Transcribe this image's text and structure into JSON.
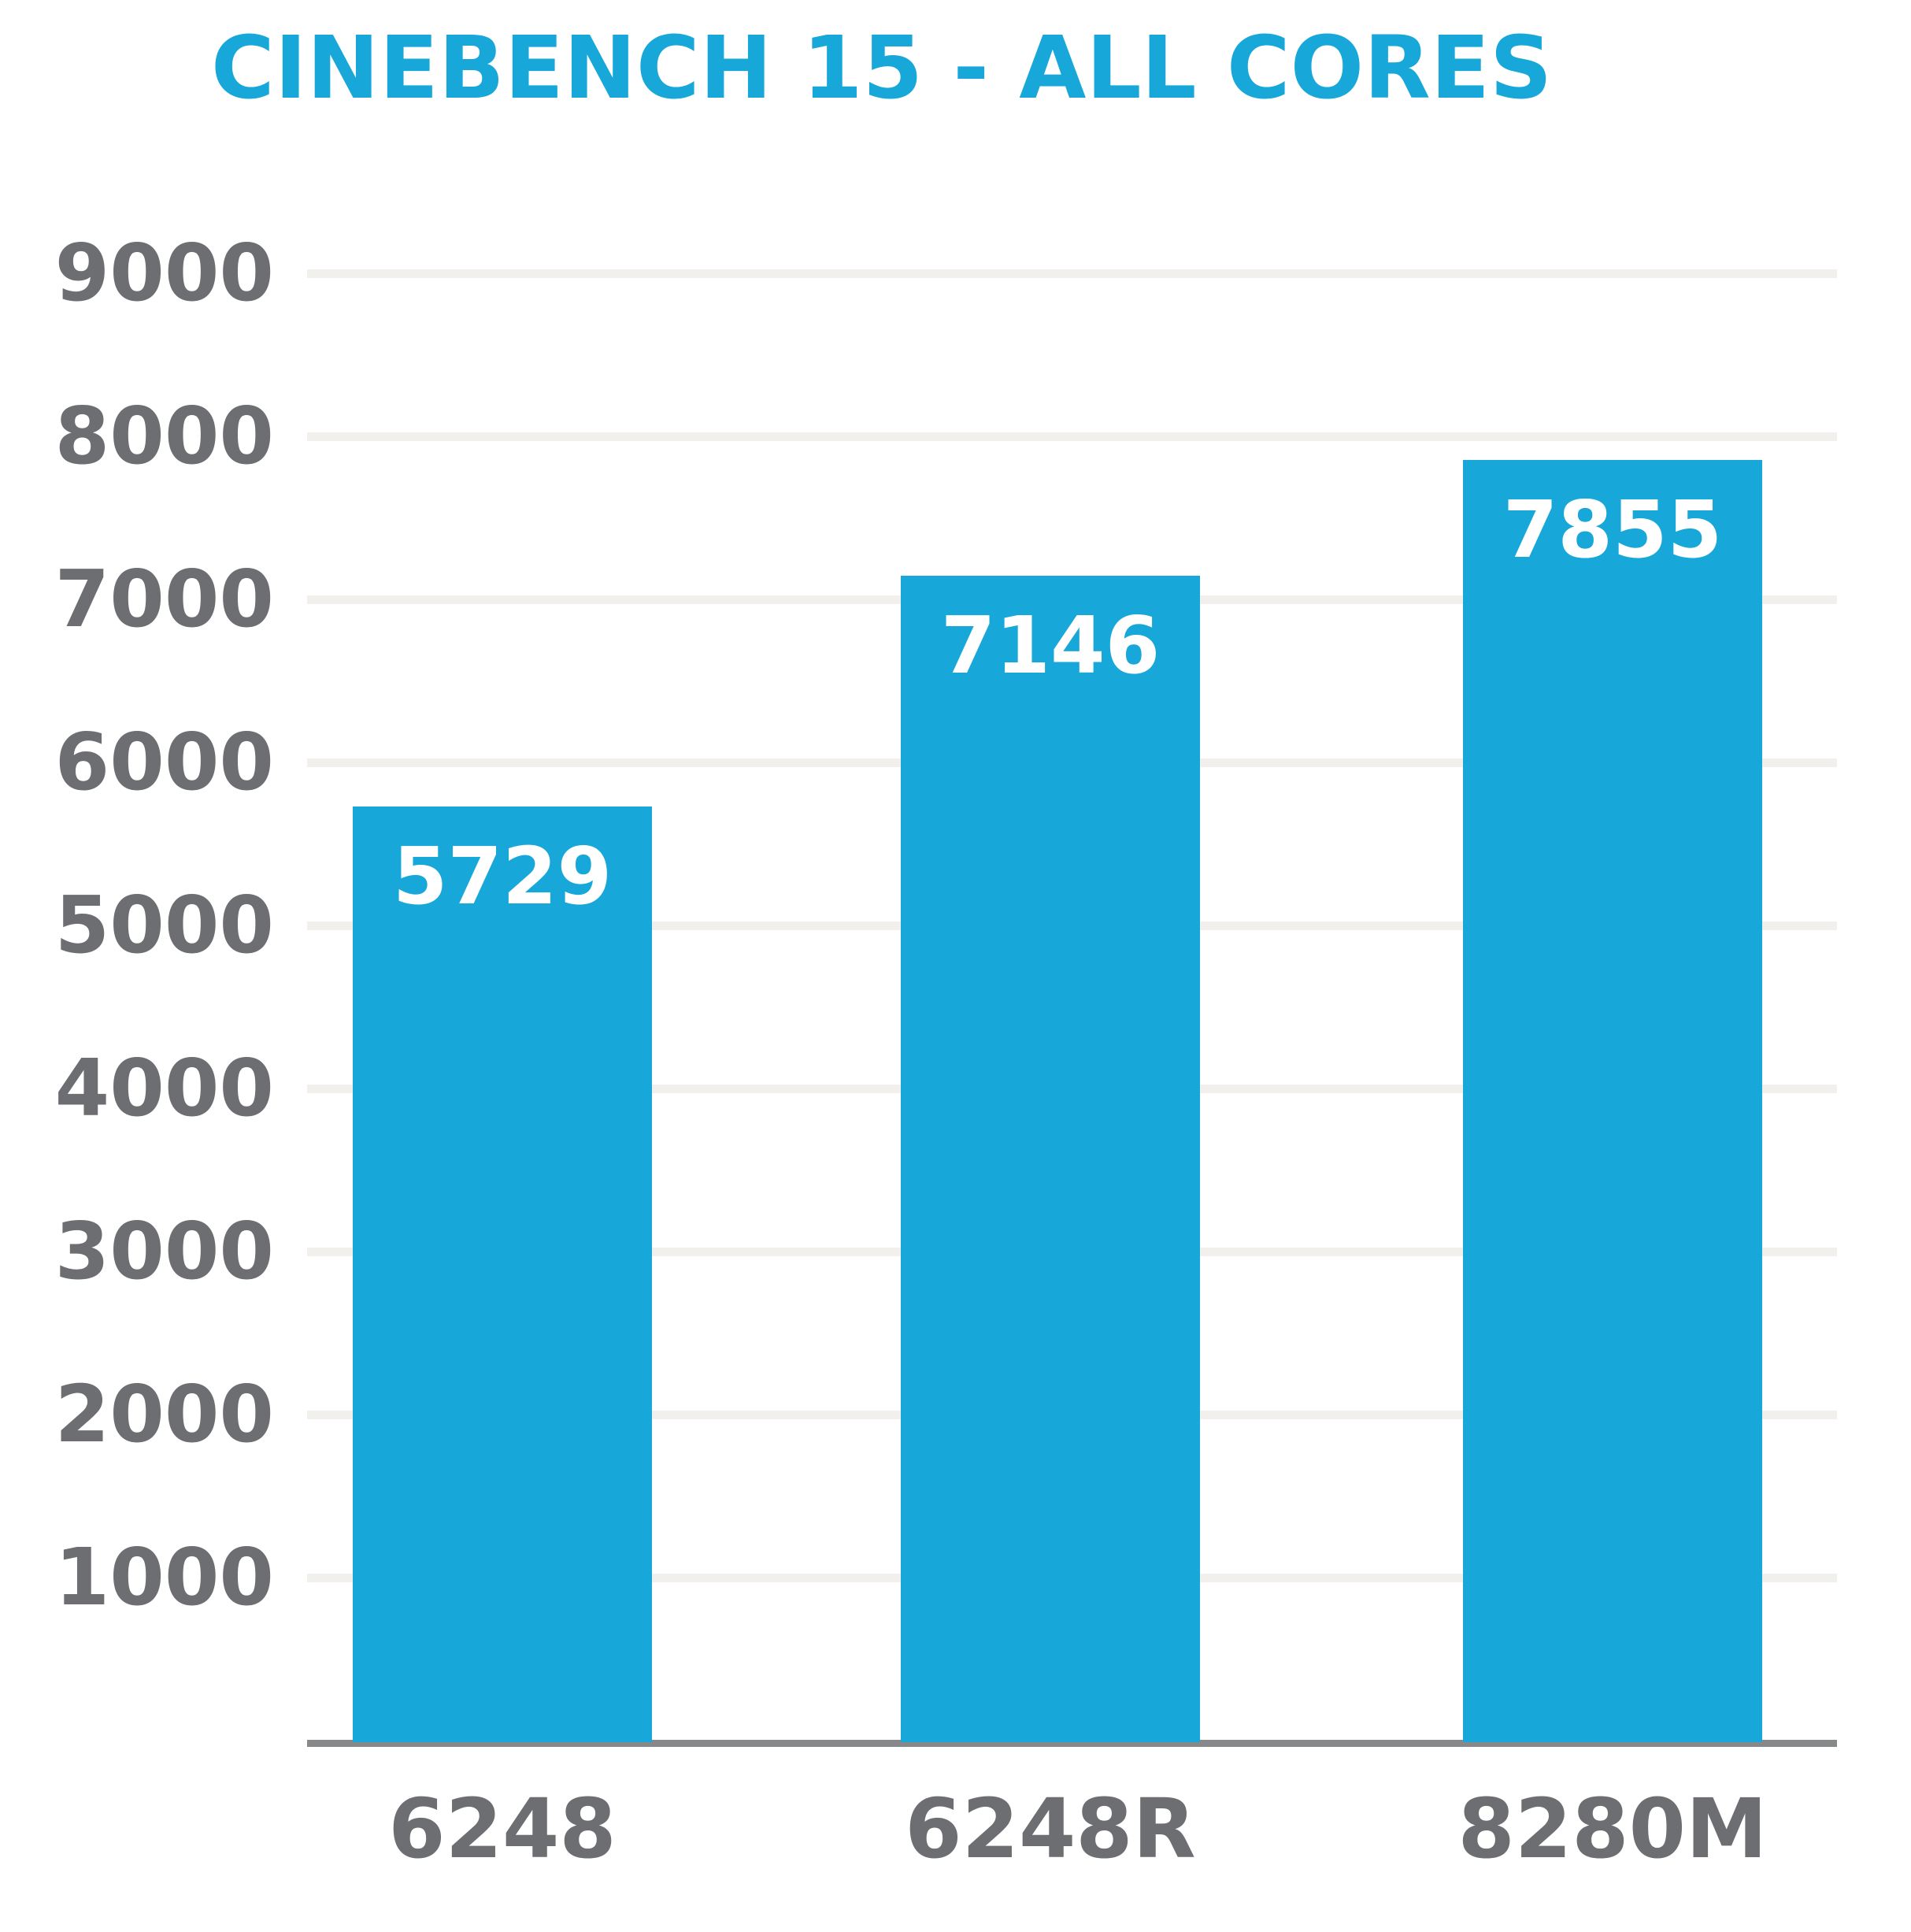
{
  "title": {
    "text": "CINEBENCH 15 - ALL CORES"
  },
  "colors": {
    "accent_blue": "#17A8D9",
    "bar": "#17A8D9",
    "title": "#17A8D9",
    "axis_label_gray": "#6D6E71",
    "gridline": "#F1F0ED",
    "axis_line": "#87888A",
    "value_label": "#FFFFFF",
    "background": "#FFFFFF"
  },
  "chart_data": {
    "type": "bar",
    "title": "CINEBENCH 15 - ALL CORES",
    "categories": [
      "6248",
      "6248R",
      "8280M"
    ],
    "values": [
      5729,
      7146,
      7855
    ],
    "bar_value_labels": [
      "5729",
      "7146",
      "7855"
    ],
    "xlabel": "",
    "ylabel": "",
    "ylim": [
      0,
      9000
    ],
    "ytick_interval": 1000,
    "yticks": [
      9000,
      8000,
      7000,
      6000,
      5000,
      4000,
      3000,
      2000,
      1000
    ],
    "grid": "horizontal",
    "legend": "none",
    "value_label_position": "inside-top"
  }
}
